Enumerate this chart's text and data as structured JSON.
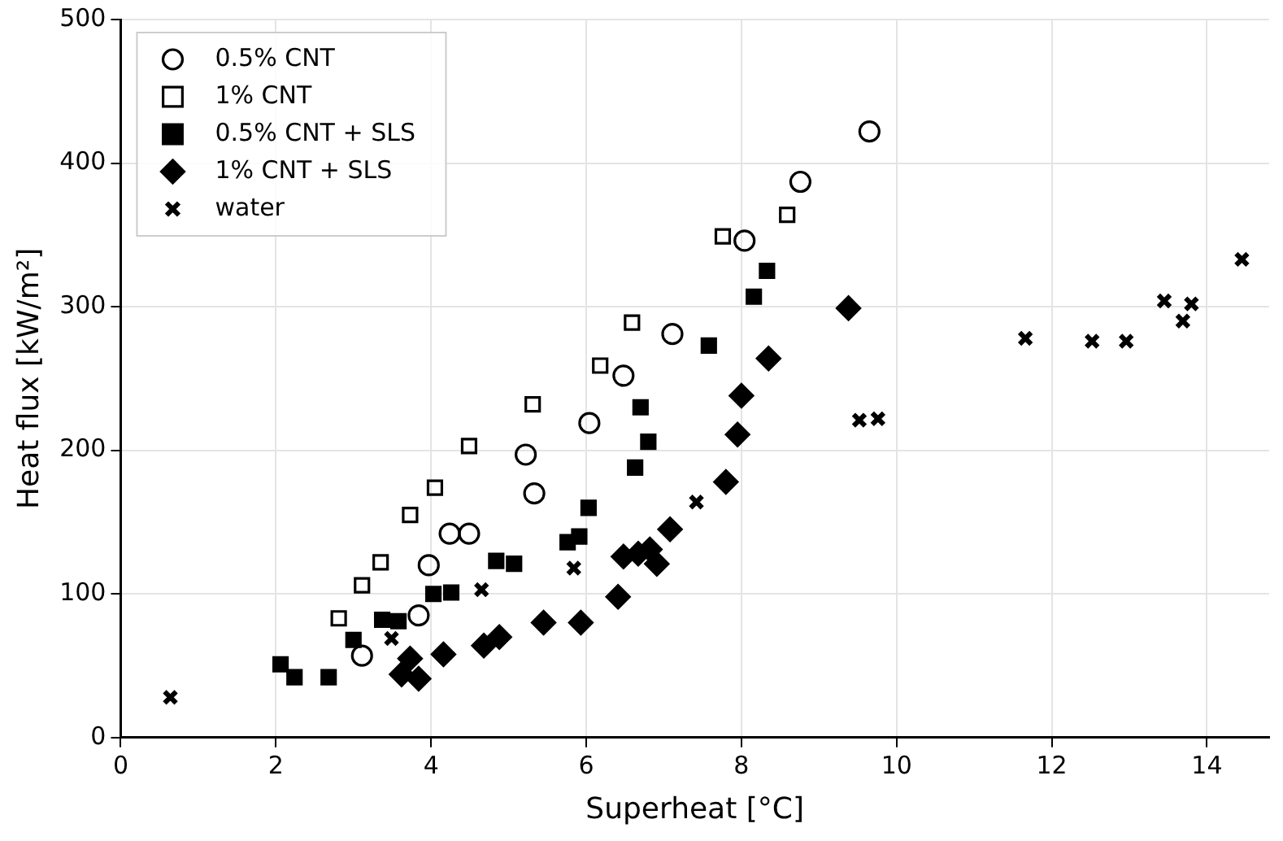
{
  "chart_data": {
    "type": "scatter",
    "xlabel": "Superheat [°C]",
    "ylabel": "Heat flux [kW/m²]",
    "xlim": [
      0,
      14.8
    ],
    "xticks": [
      0,
      2,
      4,
      6,
      8,
      10,
      12,
      14
    ],
    "ylim": [
      0,
      500
    ],
    "yticks": [
      0,
      100,
      200,
      300,
      400,
      500
    ],
    "grid": true,
    "legend": "top left",
    "series": [
      {
        "name": "0.5% CNT",
        "color": "#000000",
        "marker": "circle",
        "x": [
          3.11,
          3.84,
          3.97,
          4.24,
          4.49,
          5.22,
          5.33,
          6.04,
          6.48,
          7.11,
          8.04,
          8.76,
          9.65
        ],
        "values": [
          57,
          85,
          120,
          142,
          142,
          197,
          170,
          219,
          252,
          281,
          346,
          387,
          422
        ]
      },
      {
        "name": "1% CNT",
        "color": "#000000",
        "marker": "square",
        "x": [
          2.81,
          3.11,
          3.35,
          3.73,
          4.05,
          4.49,
          5.31,
          6.18,
          6.59,
          7.76,
          8.59
        ],
        "values": [
          83,
          106,
          122,
          155,
          174,
          203,
          232,
          259,
          289,
          349,
          364
        ]
      },
      {
        "name": "0.5% CNT + SLS",
        "color": "#000000",
        "marker": "square",
        "x": [
          2.06,
          2.24,
          2.68,
          3.0,
          3.37,
          3.58,
          4.03,
          4.26,
          4.84,
          5.07,
          5.76,
          5.91,
          6.03,
          6.63,
          6.7,
          6.8,
          7.58,
          8.16,
          8.33
        ],
        "values": [
          51,
          42,
          42,
          68,
          82,
          81,
          100,
          101,
          123,
          121,
          136,
          140,
          160,
          188,
          230,
          206,
          273,
          307,
          325
        ]
      },
      {
        "name": "1% CNT + SLS",
        "color": "#000000",
        "marker": "diamond",
        "x": [
          3.62,
          3.73,
          3.84,
          4.16,
          4.68,
          4.88,
          5.45,
          5.93,
          6.41,
          6.48,
          6.67,
          6.82,
          6.91,
          7.08,
          7.8,
          7.95,
          8.0,
          8.35,
          9.38
        ],
        "values": [
          44,
          55,
          41,
          58,
          64,
          70,
          80,
          80,
          98,
          126,
          128,
          131,
          121,
          145,
          178,
          211,
          238,
          264,
          299
        ]
      },
      {
        "name": "water",
        "color": "#000000",
        "marker": "cross",
        "x": [
          0.64,
          3.49,
          4.65,
          5.84,
          7.42,
          9.52,
          9.76,
          11.66,
          12.52,
          12.96,
          13.45,
          13.69,
          13.8,
          14.45
        ],
        "values": [
          28,
          69,
          103,
          118,
          164,
          221,
          222,
          278,
          276,
          276,
          304,
          290,
          302,
          333
        ]
      }
    ]
  }
}
